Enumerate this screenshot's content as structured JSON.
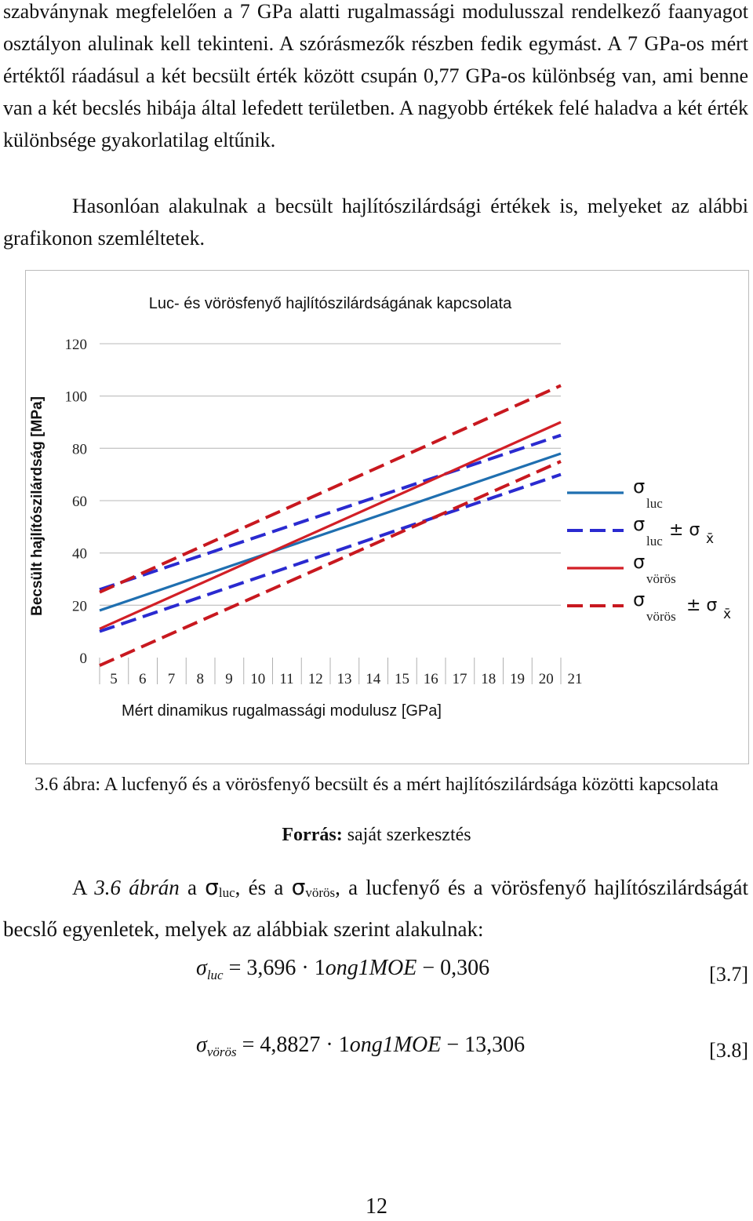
{
  "text": {
    "p1": "szabványnak megfelelően a 7 GPa alatti rugalmassági modulusszal rendelkező faanyagot osztályon alulinak kell tekinteni. A szórásmezők részben fedik egymást. A 7 GPa-os mért értéktől ráadásul a két becsült érték között csupán 0,77 GPa-os különbség van, ami benne van a két becslés hibája által lefedett területben. A nagyobb értékek felé haladva a két érték különbsége gyakorlatilag eltűnik.",
    "p2": "Hasonlóan alakulnak a becsült hajlítószilárdsági értékek is, melyeket az alábbi grafikonon szemléltetek.",
    "caption": "3.6 ábra: A lucfenyő és a vörösfenyő becsült és a mért hajlítószilárdsága közötti kapcsolata",
    "source_label": "Forrás:",
    "source_text": " saját szerkesztés",
    "p3_a": "A ",
    "p3_ref": "3.6 ábrán",
    "p3_b": " a ",
    "p3_sigma": "σ",
    "p3_sub_luc": "luc",
    "p3_c": ", és a ",
    "p3_sub_voros": "vörös",
    "p3_d": ", a lucfenyő és a vörösfenyő hajlítószilárdságát becslő egyenletek, melyek az alábbiak szerint alakulnak:",
    "eq1": {
      "sigma": "σ",
      "sub": "luc",
      "rhs_a": " = 3,696 · 1",
      "rhs_b": "ong1MOE",
      "rhs_c": " − 0,306",
      "number": "[3.7]"
    },
    "eq2": {
      "sigma": "σ",
      "sub": "vörös",
      "rhs_a": " = 4,8827 · 1",
      "rhs_b": "ong1MOE",
      "rhs_c": " − 13,306",
      "number": "[3.8]"
    },
    "page_number": "12"
  },
  "chart_data": {
    "type": "line",
    "title": "Luc- és vörösfenyő hajlítószilárdságának kapcsolata",
    "xlabel": "Mért dinamikus rugalmassági modulusz [GPa]",
    "ylabel": "Becsült hajlítószilárdság [MPa]",
    "x_ticks": [
      5,
      6,
      7,
      8,
      9,
      10,
      11,
      12,
      13,
      14,
      15,
      16,
      17,
      18,
      19,
      20,
      21
    ],
    "y_ticks": [
      0,
      20,
      40,
      60,
      80,
      100,
      120
    ],
    "xlim": [
      5,
      21
    ],
    "ylim": [
      0,
      120
    ],
    "grid": "horizontal",
    "legend_position": "right",
    "series": [
      {
        "key": "luc",
        "legend_sigma": "σ",
        "legend_sub": "luc",
        "legend_suffix": "",
        "color": "#1f6fb0",
        "dash": false,
        "x": [
          5,
          21
        ],
        "y": [
          18,
          78
        ]
      },
      {
        "key": "luc_band_upper",
        "legend_sigma": "σ",
        "legend_sub": "luc",
        "legend_suffix": "± σ",
        "legend_suffix_sub": "x̄",
        "color": "#2a2ad0",
        "dash": true,
        "x": [
          5,
          21
        ],
        "y": [
          26,
          85
        ],
        "legend": true
      },
      {
        "key": "luc_band_lower",
        "color": "#2a2ad0",
        "dash": true,
        "x": [
          5,
          21
        ],
        "y": [
          10,
          70
        ],
        "legend": false
      },
      {
        "key": "voros",
        "legend_sigma": "σ",
        "legend_sub": "vörös",
        "legend_suffix": "",
        "color": "#d21f26",
        "dash": false,
        "x": [
          5,
          21
        ],
        "y": [
          11,
          90
        ]
      },
      {
        "key": "voros_band_upper",
        "legend_sigma": "σ",
        "legend_sub": "vörös",
        "legend_suffix": "± σ",
        "legend_suffix_sub": "x̄",
        "color": "#c8181f",
        "dash": true,
        "x": [
          5,
          21
        ],
        "y": [
          25,
          104
        ],
        "legend": true
      },
      {
        "key": "voros_band_lower",
        "color": "#c8181f",
        "dash": true,
        "x": [
          5,
          21
        ],
        "y": [
          -3,
          75
        ],
        "legend": false
      }
    ]
  }
}
